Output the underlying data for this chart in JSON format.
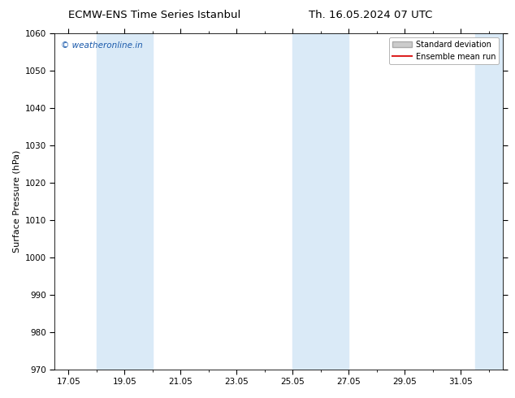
{
  "title_left": "ECMW-ENS Time Series Istanbul",
  "title_right": "Th. 16.05.2024 07 UTC",
  "ylabel": "Surface Pressure (hPa)",
  "ylim": [
    970,
    1060
  ],
  "yticks": [
    970,
    980,
    990,
    1000,
    1010,
    1020,
    1030,
    1040,
    1050,
    1060
  ],
  "xlim_start": 16.5,
  "xlim_end": 32.5,
  "xtick_positions": [
    17,
    19,
    21,
    23,
    25,
    27,
    29,
    31
  ],
  "xtick_labels": [
    "17.05",
    "19.05",
    "21.05",
    "23.05",
    "25.05",
    "27.05",
    "29.05",
    "31.05"
  ],
  "shade_bands": [
    {
      "x_start": 18.0,
      "x_end": 20.0
    },
    {
      "x_start": 25.0,
      "x_end": 27.0
    },
    {
      "x_start": 31.5,
      "x_end": 32.5
    }
  ],
  "shade_color": "#daeaf7",
  "watermark_text": "© weatheronline.in",
  "watermark_color": "#1a5aab",
  "watermark_fontsize": 7.5,
  "legend_std_label": "Standard deviation",
  "legend_mean_label": "Ensemble mean run",
  "legend_std_color": "#cccccc",
  "legend_std_edge": "#aaaaaa",
  "legend_mean_color": "#dd2222",
  "background_color": "#ffffff",
  "title_fontsize": 9.5,
  "tick_fontsize": 7.5,
  "ylabel_fontsize": 8
}
